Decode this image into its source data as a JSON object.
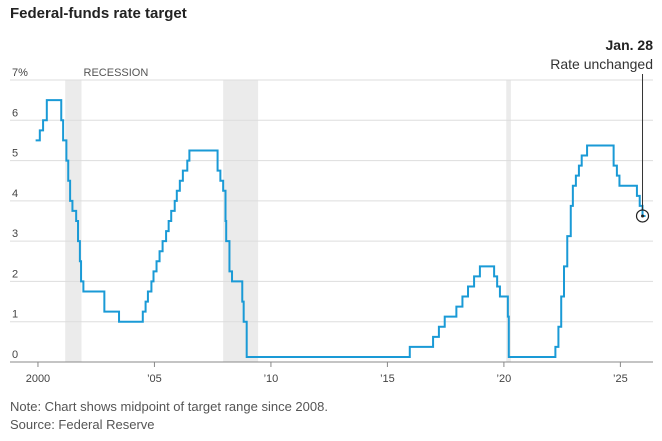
{
  "chart_data": {
    "type": "step-line",
    "title": "Federal-funds rate target",
    "annotation": {
      "title": "Jan. 28",
      "text": "Rate unchanged"
    },
    "recession_label": "RECESSION",
    "recessions": [
      [
        2001.17,
        2001.87
      ],
      [
        2007.95,
        2009.45
      ],
      [
        2020.1,
        2020.3
      ]
    ],
    "note": "Note: Chart shows midpoint of target range since 2008.",
    "source": "Source: Federal Reserve",
    "color": "#1a9ad6",
    "grid": true,
    "xlim": [
      1998.8,
      2026.4
    ],
    "ylim": [
      0,
      7
    ],
    "xticks": [
      {
        "value": 2000,
        "label": "2000"
      },
      {
        "value": 2005,
        "label": "’05"
      },
      {
        "value": 2010,
        "label": "’10"
      },
      {
        "value": 2015,
        "label": "’15"
      },
      {
        "value": 2020,
        "label": "’20"
      },
      {
        "value": 2025,
        "label": "’25"
      }
    ],
    "yticks": [
      0,
      1,
      2,
      3,
      4,
      5,
      6,
      {
        "value": 7,
        "label": "7%"
      }
    ],
    "x": [
      1999.9,
      2000.08,
      2000.22,
      2000.38,
      2001.0,
      2001.08,
      2001.22,
      2001.3,
      2001.38,
      2001.48,
      2001.64,
      2001.72,
      2001.8,
      2001.85,
      2001.95,
      2002.85,
      2003.48,
      2004.5,
      2004.62,
      2004.72,
      2004.87,
      2004.96,
      2005.09,
      2005.22,
      2005.35,
      2005.5,
      2005.61,
      2005.72,
      2005.87,
      2005.96,
      2006.09,
      2006.22,
      2006.41,
      2006.5,
      2007.71,
      2007.83,
      2007.95,
      2008.05,
      2008.08,
      2008.22,
      2008.33,
      2008.77,
      2008.83,
      2008.96,
      2015.96,
      2016.96,
      2017.21,
      2017.46,
      2017.96,
      2018.22,
      2018.46,
      2018.72,
      2018.97,
      2019.58,
      2019.71,
      2019.83,
      2020.17,
      2020.21,
      2022.21,
      2022.34,
      2022.46,
      2022.58,
      2022.72,
      2022.87,
      2022.96,
      2023.09,
      2023.22,
      2023.34,
      2023.57,
      2024.71,
      2024.85,
      2024.96,
      2025.71,
      2025.83,
      2025.95,
      2026.08
    ],
    "values": [
      5.5,
      5.75,
      6.0,
      6.5,
      6.0,
      5.5,
      5.0,
      4.5,
      4.0,
      3.75,
      3.5,
      3.0,
      2.5,
      2.0,
      1.75,
      1.25,
      1.0,
      1.25,
      1.5,
      1.75,
      2.0,
      2.25,
      2.5,
      2.75,
      3.0,
      3.25,
      3.5,
      3.75,
      4.0,
      4.25,
      4.5,
      4.75,
      5.0,
      5.25,
      4.75,
      4.5,
      4.25,
      3.5,
      3.0,
      2.25,
      2.0,
      1.5,
      1.0,
      0.125,
      0.375,
      0.625,
      0.875,
      1.125,
      1.375,
      1.625,
      1.875,
      2.125,
      2.375,
      2.125,
      1.875,
      1.625,
      1.125,
      0.125,
      0.375,
      0.875,
      1.625,
      2.375,
      3.125,
      3.875,
      4.375,
      4.625,
      4.875,
      5.125,
      5.375,
      4.875,
      4.625,
      4.375,
      4.125,
      3.875,
      3.625,
      3.625
    ]
  }
}
